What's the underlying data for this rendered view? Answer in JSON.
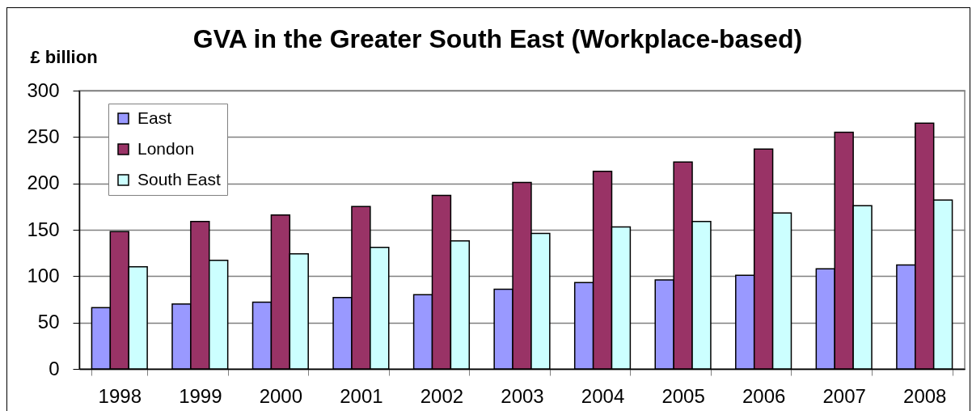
{
  "chart_data": {
    "type": "bar",
    "title": "GVA in the Greater South East (Workplace-based)",
    "ylabel": "£ billion",
    "categories": [
      "1998",
      "1999",
      "2000",
      "2001",
      "2002",
      "2003",
      "2004",
      "2005",
      "2006",
      "2007",
      "2008"
    ],
    "series": [
      {
        "name": "East",
        "color": "#9999ff",
        "values": [
          66,
          70,
          72,
          77,
          80,
          86,
          93,
          96,
          101,
          108,
          112
        ]
      },
      {
        "name": "London",
        "color": "#993366",
        "values": [
          148,
          159,
          166,
          175,
          187,
          201,
          213,
          223,
          237,
          255,
          265
        ]
      },
      {
        "name": "South East",
        "color": "#ccffff",
        "values": [
          110,
          117,
          124,
          131,
          138,
          146,
          153,
          159,
          168,
          176,
          182
        ]
      }
    ],
    "ylim": [
      0,
      300
    ],
    "yticks": [
      0,
      50,
      100,
      150,
      200,
      250,
      300
    ],
    "grid": "y",
    "legend": "top left"
  }
}
